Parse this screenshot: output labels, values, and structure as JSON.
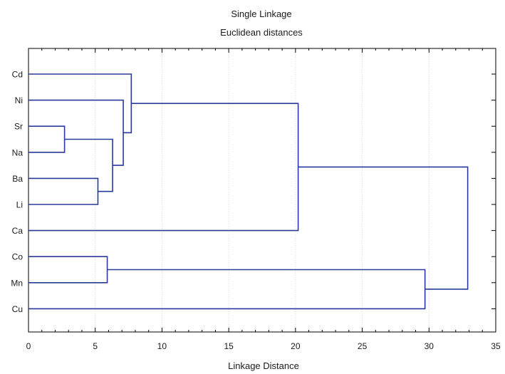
{
  "chart_data": {
    "type": "dendrogram",
    "title": "Single Linkage",
    "subtitle": "Euclidean distances",
    "xlabel": "Linkage Distance",
    "xlim": [
      0,
      35
    ],
    "xticks": [
      0,
      5,
      10,
      15,
      20,
      25,
      30,
      35
    ],
    "grid": "vertical",
    "line_color": "#2a3a9a",
    "leaves": [
      "Cd",
      "Ni",
      "Sr",
      "Na",
      "Ba",
      "Li",
      "Ca",
      "Co",
      "Mn",
      "Cu"
    ],
    "merges": [
      {
        "a": "Sr",
        "b": "Na",
        "height": 2.7
      },
      {
        "a": "Ba",
        "b": "Li",
        "height": 5.2
      },
      {
        "a": "Co",
        "b": "Mn",
        "height": 5.9
      },
      {
        "a": "M1",
        "b": "M2",
        "height": 6.3
      },
      {
        "a": "Ni",
        "b": "M4",
        "height": 7.1
      },
      {
        "a": "Cd",
        "b": "M5",
        "height": 7.7
      },
      {
        "a": "M6",
        "b": "Ca",
        "height": 20.2
      },
      {
        "a": "M3",
        "b": "Cu",
        "height": 29.7
      },
      {
        "a": "M7",
        "b": "M8",
        "height": 32.9
      }
    ]
  }
}
